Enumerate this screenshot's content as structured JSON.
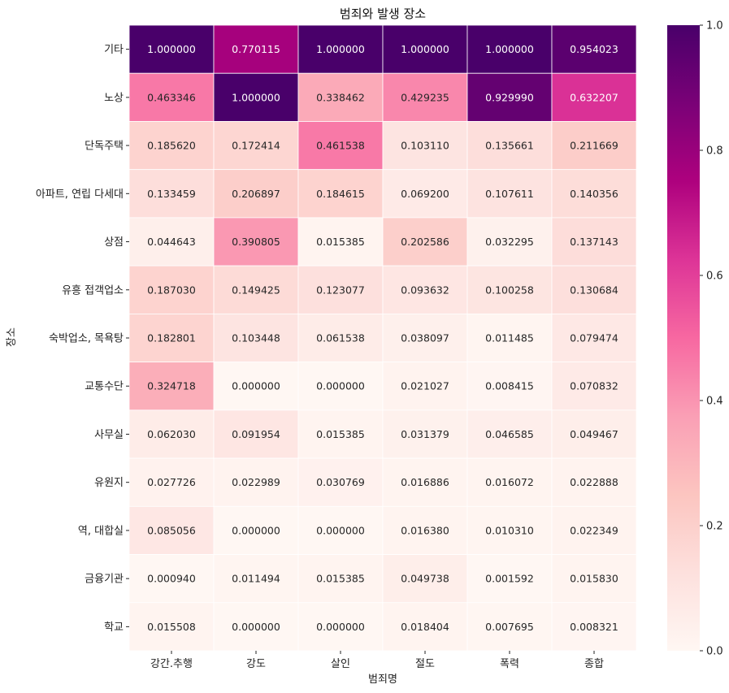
{
  "chart_data": {
    "type": "heatmap",
    "title": "범죄와 발생 장소",
    "xlabel": "범죄명",
    "ylabel": "장소",
    "columns": [
      "강간.추행",
      "강도",
      "살인",
      "절도",
      "폭력",
      "종합"
    ],
    "rows": [
      "기타",
      "노상",
      "단독주택",
      "아파트, 연립 다세대",
      "상점",
      "유흥 접객업소",
      "숙박업소, 목욕탕",
      "교통수단",
      "사무실",
      "유원지  ",
      "역, 대합실",
      "금융기관",
      "학교"
    ],
    "values": [
      [
        1.0,
        0.770115,
        1.0,
        1.0,
        1.0,
        0.954023
      ],
      [
        0.463346,
        1.0,
        0.338462,
        0.429235,
        0.92999,
        0.632207
      ],
      [
        0.18562,
        0.172414,
        0.461538,
        0.10311,
        0.135661,
        0.211669
      ],
      [
        0.133459,
        0.206897,
        0.184615,
        0.0692,
        0.107611,
        0.140356
      ],
      [
        0.044643,
        0.390805,
        0.015385,
        0.202586,
        0.032295,
        0.137143
      ],
      [
        0.18703,
        0.149425,
        0.123077,
        0.093632,
        0.100258,
        0.130684
      ],
      [
        0.182801,
        0.103448,
        0.061538,
        0.038097,
        0.011485,
        0.079474
      ],
      [
        0.324718,
        0.0,
        0.0,
        0.021027,
        0.008415,
        0.070832
      ],
      [
        0.06203,
        0.091954,
        0.015385,
        0.031379,
        0.046585,
        0.049467
      ],
      [
        0.027726,
        0.022989,
        0.030769,
        0.016886,
        0.016072,
        0.022888
      ],
      [
        0.085056,
        0.0,
        0.0,
        0.01638,
        0.01031,
        0.022349
      ],
      [
        0.00094,
        0.011494,
        0.015385,
        0.049738,
        0.001592,
        0.01583
      ],
      [
        0.015508,
        0.0,
        0.0,
        0.018404,
        0.007695,
        0.008321
      ]
    ],
    "value_format": "0.000000",
    "colormap": "RdPu",
    "vmin": 0.0,
    "vmax": 1.0,
    "colorbar_ticks": [
      "0.0",
      "0.2",
      "0.4",
      "0.6",
      "0.8",
      "1.0"
    ],
    "colorbar_tick_values": [
      0.0,
      0.2,
      0.4,
      0.6,
      0.8,
      1.0
    ],
    "colorbar_colors": [
      "#fff7f3",
      "#fde0dd",
      "#fcc5c0",
      "#fa9fb5",
      "#f768a1",
      "#dd3497",
      "#ae017e",
      "#7a0177",
      "#49006a"
    ],
    "dark_text_color": "#262626",
    "light_text_color": "#ffffff"
  }
}
